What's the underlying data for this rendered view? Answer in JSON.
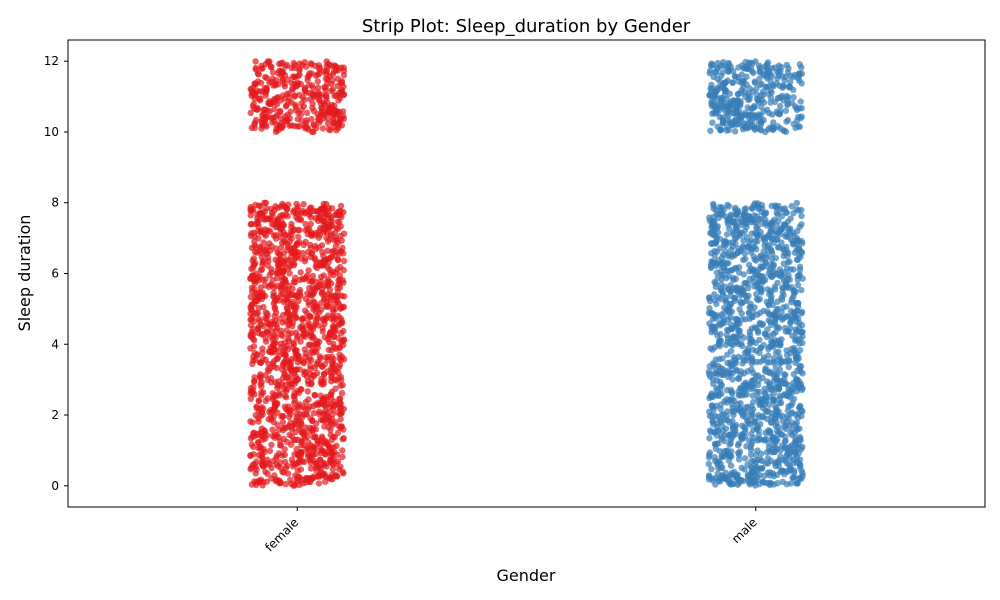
{
  "chart_data": {
    "type": "scatter",
    "subtype": "strip",
    "title": "Strip Plot: Sleep_duration by Gender",
    "xlabel": "Gender",
    "ylabel": "Sleep duration",
    "categories": [
      "female",
      "male"
    ],
    "ylim": [
      -0.6,
      12.6
    ],
    "yticks": [
      "0",
      "2",
      "4",
      "6",
      "8",
      "10",
      "12"
    ],
    "grid": false,
    "legend": "none",
    "series": [
      {
        "category": "female",
        "color": "#e41a1c",
        "value_ranges": [
          [
            0,
            8
          ],
          [
            10,
            12
          ]
        ]
      },
      {
        "category": "male",
        "color": "#377eb8",
        "value_ranges": [
          [
            0,
            8
          ],
          [
            10,
            12
          ]
        ]
      }
    ]
  }
}
